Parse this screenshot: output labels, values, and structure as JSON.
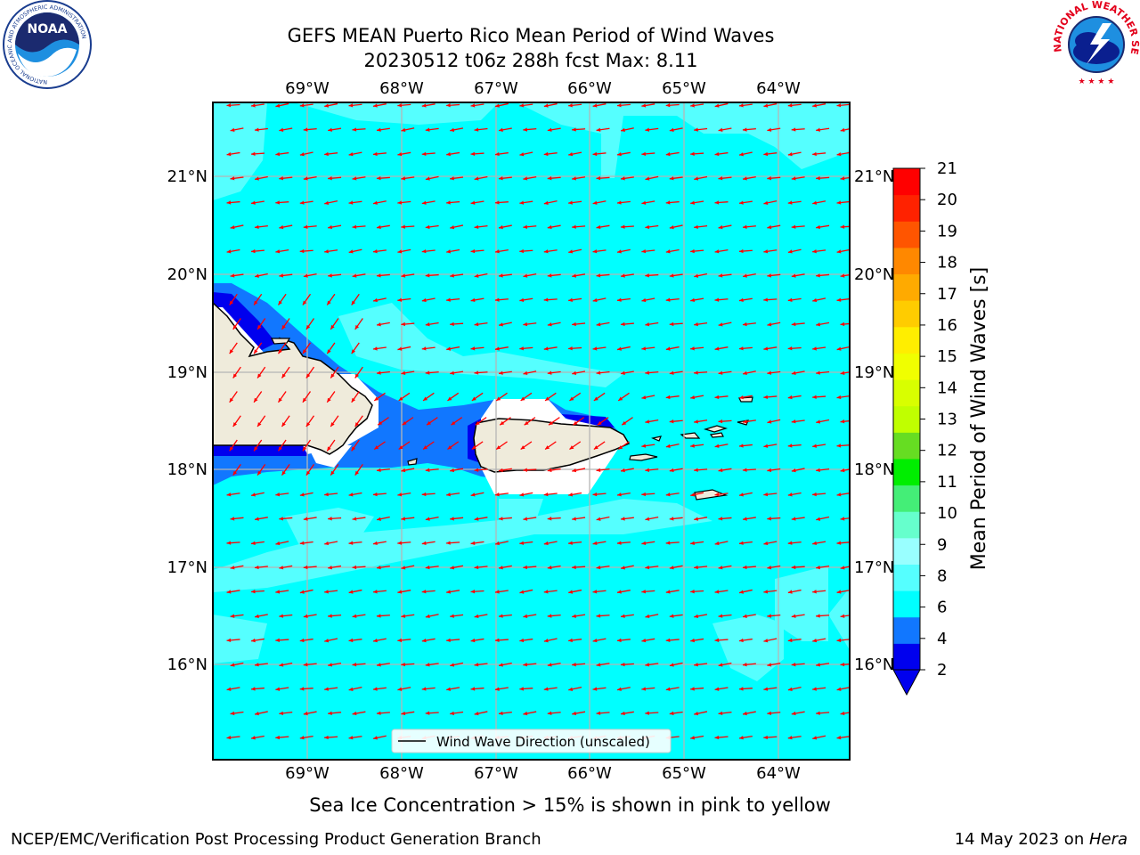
{
  "title": {
    "line1": "GEFS MEAN Puerto Rico Mean Period of Wind Waves",
    "line2": "20230512 t06z 288h fcst   Max: 8.11"
  },
  "map": {
    "lon_ticks": [
      "69°W",
      "68°W",
      "67°W",
      "66°W",
      "65°W",
      "64°W"
    ],
    "lat_ticks": [
      "21°N",
      "20°N",
      "19°N",
      "18°N",
      "17°N",
      "16°N"
    ],
    "legend_label": "Wind Wave Direction (unscaled)",
    "arrow_color": "#ff0000",
    "land_color": "#efebdb"
  },
  "colorbar": {
    "label": "Mean Period of Wind Waves [s]",
    "ticks": [
      "21",
      "20",
      "19",
      "18",
      "17",
      "16",
      "15",
      "14",
      "13",
      "12",
      "11",
      "10",
      "9",
      "8",
      "6",
      "4",
      "2"
    ],
    "colors": [
      "#ff0000",
      "#ff2200",
      "#ff5500",
      "#ff8800",
      "#ffaa00",
      "#ffcc00",
      "#ffee00",
      "#f0ff00",
      "#d8ff00",
      "#c0ff00",
      "#66dd22",
      "#00ee00",
      "#44ee77",
      "#66ffcc",
      "#99ffff",
      "#55ffff",
      "#00ffff",
      "#1177ff",
      "#0000ee"
    ]
  },
  "caption": "Sea Ice Concentration > 15% is shown in pink to yellow",
  "footer": {
    "left": "NCEP/EMC/Verification Post Processing Product Generation Branch",
    "right_prefix": "14 May 2023 on ",
    "right_host": "Hera"
  },
  "logos": {
    "noaa_text": "NOAA",
    "noaa_ring": "NATIONAL OCEANIC AND ATMOSPHERIC ADMINISTRATION",
    "noaa_ring_bottom": "U.S. DEPARTMENT OF COMMERCE",
    "nws_ring": "NATIONAL WEATHER SERVICE"
  }
}
